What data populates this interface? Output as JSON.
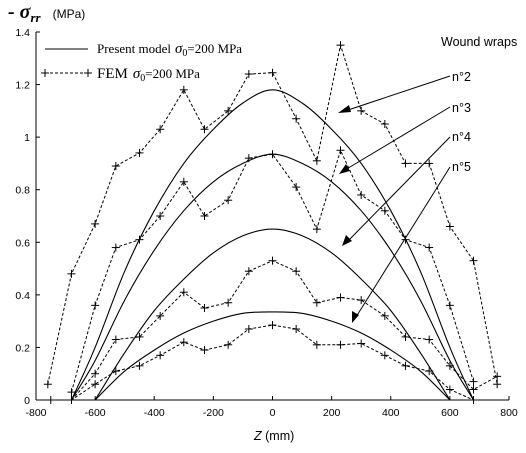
{
  "chart_data": {
    "type": "line",
    "title": "",
    "ylabel_symbol": "- σ",
    "ylabel_sub": "rr",
    "ylabel_unit": "(MPa)",
    "xlabel_var": "Z",
    "xlabel_unit": " (mm)",
    "xlim": [
      -800,
      800
    ],
    "ylim": [
      0,
      1.4
    ],
    "xticks": [
      -800,
      -600,
      -400,
      -200,
      0,
      200,
      400,
      600,
      800
    ],
    "yticks": [
      0,
      0.2,
      0.4,
      0.6,
      0.8,
      1,
      1.2,
      1.4
    ],
    "grid": false,
    "legend": {
      "placement": "top-left",
      "model_label": "Present model",
      "model_sigma": "σ",
      "model_sub": "0",
      "model_val": "=200 MPa",
      "fem_label": "FEM",
      "fem_sigma": "σ",
      "fem_sub": "0",
      "fem_val": "=200 MPa"
    },
    "annotation_title": "Wound wraps",
    "annotations": [
      "n°2",
      "n°3",
      "n°4",
      "n°5"
    ],
    "model_series": [
      {
        "name": "n°2",
        "x": [
          -680,
          -600,
          -500,
          -400,
          -300,
          -200,
          -100,
          0,
          100,
          200,
          300,
          400,
          500,
          600,
          680
        ],
        "y": [
          0.0,
          0.2,
          0.49,
          0.72,
          0.9,
          1.03,
          1.13,
          1.18,
          1.13,
          1.03,
          0.9,
          0.72,
          0.49,
          0.2,
          0.0
        ]
      },
      {
        "name": "n°3",
        "x": [
          -680,
          -600,
          -500,
          -400,
          -300,
          -200,
          -100,
          0,
          100,
          200,
          300,
          400,
          500,
          600,
          680
        ],
        "y": [
          0.0,
          0.15,
          0.38,
          0.57,
          0.72,
          0.83,
          0.9,
          0.935,
          0.9,
          0.83,
          0.72,
          0.57,
          0.38,
          0.15,
          0.0
        ]
      },
      {
        "name": "n°4",
        "x": [
          -600,
          -500,
          -400,
          -300,
          -200,
          -100,
          0,
          100,
          200,
          300,
          400,
          500,
          600
        ],
        "y": [
          0.0,
          0.18,
          0.34,
          0.46,
          0.56,
          0.625,
          0.65,
          0.625,
          0.56,
          0.46,
          0.34,
          0.18,
          0.0
        ]
      },
      {
        "name": "n°5",
        "x": [
          -600,
          -500,
          -400,
          -300,
          -200,
          -100,
          0,
          100,
          200,
          300,
          400,
          500,
          600
        ],
        "y": [
          0.0,
          0.11,
          0.19,
          0.255,
          0.3,
          0.33,
          0.335,
          0.33,
          0.3,
          0.255,
          0.19,
          0.11,
          0.0
        ]
      }
    ],
    "fem_series": [
      {
        "name": "n°2",
        "x": [
          -760,
          -680,
          -600,
          -530,
          -450,
          -380,
          -300,
          -230,
          -150,
          -80,
          0,
          80,
          150,
          230,
          300,
          380,
          450,
          530,
          600,
          680,
          760
        ],
        "y": [
          0.06,
          0.48,
          0.67,
          0.89,
          0.94,
          1.03,
          1.18,
          1.03,
          1.1,
          1.24,
          1.245,
          1.07,
          0.91,
          1.35,
          1.1,
          1.05,
          0.9,
          0.9,
          0.66,
          0.53,
          0.06
        ]
      },
      {
        "name": "n°3",
        "x": [
          -680,
          -600,
          -530,
          -450,
          -380,
          -300,
          -230,
          -150,
          -80,
          0,
          80,
          150,
          230,
          300,
          380,
          450,
          530,
          600,
          680
        ],
        "y": [
          0.03,
          0.36,
          0.58,
          0.61,
          0.7,
          0.83,
          0.7,
          0.76,
          0.92,
          0.935,
          0.81,
          0.65,
          0.95,
          0.78,
          0.72,
          0.61,
          0.58,
          0.36,
          0.07
        ]
      },
      {
        "name": "n°4",
        "x": [
          -680,
          -600,
          -530,
          -450,
          -380,
          -300,
          -230,
          -150,
          -80,
          0,
          80,
          150,
          230,
          300,
          380,
          450,
          530,
          600,
          680,
          760
        ],
        "y": [
          0.0,
          0.1,
          0.23,
          0.24,
          0.32,
          0.41,
          0.35,
          0.37,
          0.49,
          0.53,
          0.49,
          0.37,
          0.39,
          0.38,
          0.32,
          0.24,
          0.23,
          0.13,
          0.04,
          0.09
        ]
      },
      {
        "name": "n°5",
        "x": [
          -750,
          -680,
          -600,
          -530,
          -450,
          -380,
          -300,
          -230,
          -150,
          -80,
          0,
          80,
          150,
          230,
          300,
          380,
          450,
          530,
          600,
          680
        ],
        "y": [
          0.0,
          0.0,
          0.06,
          0.11,
          0.13,
          0.17,
          0.22,
          0.19,
          0.21,
          0.27,
          0.285,
          0.27,
          0.21,
          0.21,
          0.215,
          0.17,
          0.13,
          0.11,
          0.04,
          0.0
        ]
      }
    ]
  }
}
